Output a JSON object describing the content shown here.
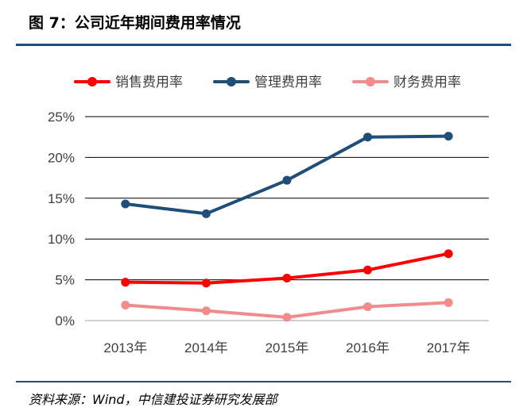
{
  "header": {
    "title": "图 7：公司近年期间费用率情况"
  },
  "footer": {
    "source": "资料来源：Wind，中信建投证券研究发展部"
  },
  "chart_data": {
    "type": "line",
    "title": "",
    "xlabel": "",
    "ylabel": "",
    "categories": [
      "2013年",
      "2014年",
      "2015年",
      "2016年",
      "2017年"
    ],
    "y_tick_labels": [
      "0%",
      "5%",
      "10%",
      "15%",
      "20%",
      "25%"
    ],
    "ylim": [
      0,
      25
    ],
    "grid": true,
    "legend_position": "top",
    "series": [
      {
        "name": "销售费用率",
        "color": "#ff0000",
        "values": [
          4.7,
          4.6,
          5.2,
          6.2,
          8.2
        ]
      },
      {
        "name": "管理费用率",
        "color": "#1f4e79",
        "values": [
          14.3,
          13.1,
          17.2,
          22.5,
          22.6
        ]
      },
      {
        "name": "财务费用率",
        "color": "#f28b8b",
        "values": [
          1.9,
          1.2,
          0.4,
          1.7,
          2.2
        ]
      }
    ]
  }
}
